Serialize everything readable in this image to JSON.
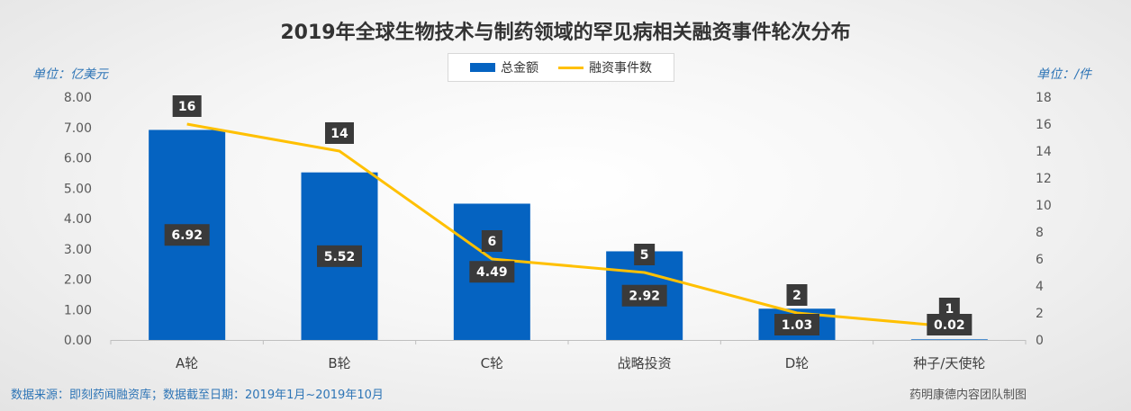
{
  "title": "2019年全球生物技术与制药领域的罕见病相关融资事件轮次分布",
  "unit_left": "单位：亿美元",
  "unit_right": "单位：/件",
  "source_note": "数据来源：即刻药闻融资库；数据截至日期：2019年1月~2019年10月",
  "credit": "药明康德内容团队制图",
  "legend": {
    "bar_label": "总金额",
    "line_label": "融资事件数"
  },
  "colors": {
    "bar": "#0563c1",
    "line": "#ffc000",
    "label_bg": "#3a3a3a",
    "label_text": "#ffffff"
  },
  "chart_data": {
    "type": "bar",
    "categories": [
      "A轮",
      "B轮",
      "C轮",
      "战略投资",
      "D轮",
      "种子/天使轮"
    ],
    "series": [
      {
        "name": "总金额",
        "type": "bar",
        "axis": "left",
        "values": [
          6.92,
          5.52,
          4.49,
          2.92,
          1.03,
          0.02
        ]
      },
      {
        "name": "融资事件数",
        "type": "line",
        "axis": "right",
        "values": [
          16,
          14,
          6,
          5,
          2,
          1
        ]
      }
    ],
    "y_left": {
      "range": [
        0,
        8
      ],
      "ticks": [
        "0.00",
        "1.00",
        "2.00",
        "3.00",
        "4.00",
        "5.00",
        "6.00",
        "7.00",
        "8.00"
      ]
    },
    "y_right": {
      "range": [
        0,
        18
      ],
      "ticks": [
        "0",
        "2",
        "4",
        "6",
        "8",
        "10",
        "12",
        "14",
        "16",
        "18"
      ]
    },
    "value_labels_left": [
      "6.92",
      "5.52",
      "4.49",
      "2.92",
      "1.03",
      "0.02"
    ],
    "value_labels_right": [
      "16",
      "14",
      "6",
      "5",
      "2",
      "1"
    ],
    "grid": false,
    "legend_position": "top-center"
  }
}
